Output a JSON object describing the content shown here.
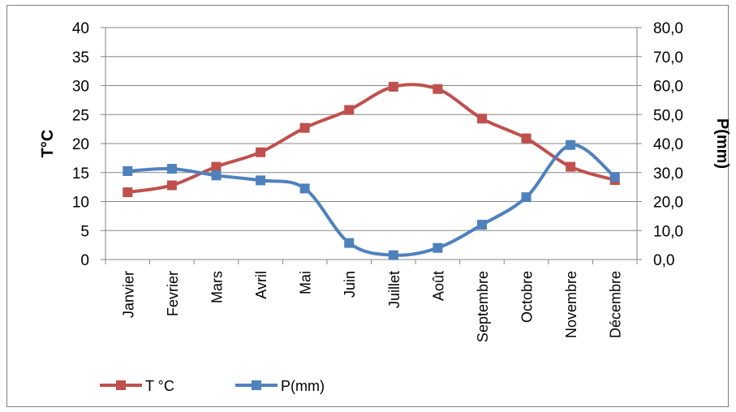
{
  "chart_data": {
    "type": "line",
    "categories": [
      "Janvier",
      "Fevrier",
      "Mars",
      "Avril",
      "Mai",
      "Juin",
      "Juillet",
      "Août",
      "Septembre",
      "Octobre",
      "Novembre",
      "Décembre"
    ],
    "series": [
      {
        "name": "T °C",
        "axis": "left",
        "color": "#c0504d",
        "marker": "square",
        "values": [
          11.6,
          12.8,
          16.0,
          18.5,
          22.7,
          25.8,
          29.8,
          29.4,
          24.3,
          20.9,
          16.0,
          13.7
        ]
      },
      {
        "name": "P(mm)",
        "axis": "right",
        "color": "#4f81bd",
        "marker": "square",
        "values": [
          30.5,
          31.3,
          29.0,
          27.3,
          24.5,
          5.7,
          1.5,
          4.0,
          12.0,
          21.5,
          39.5,
          28.5
        ]
      }
    ],
    "ylabel": "T°C",
    "y2label": "P(mm)",
    "ylim": [
      0,
      40
    ],
    "y2lim": [
      0,
      80
    ],
    "yticks": [
      "0",
      "5",
      "10",
      "15",
      "20",
      "25",
      "30",
      "35",
      "40"
    ],
    "y2ticks": [
      "0,0",
      "10,0",
      "20,0",
      "30,0",
      "40,0",
      "50,0",
      "60,0",
      "70,0",
      "80,0"
    ],
    "grid": true,
    "legend_position": "bottom-left"
  }
}
